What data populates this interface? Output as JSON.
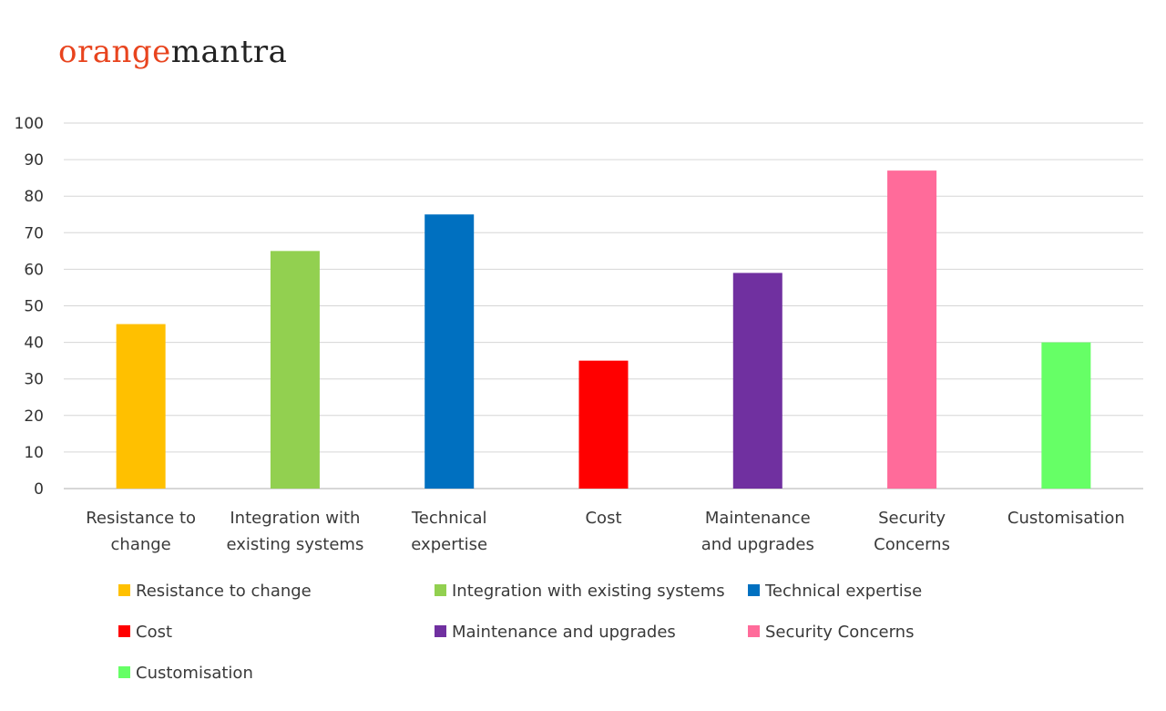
{
  "brand": {
    "part1": "orange",
    "part2": "mantra",
    "color1": "#e8441e",
    "color2": "#222222"
  },
  "chart_data": {
    "type": "bar",
    "title": "",
    "xlabel": "",
    "ylabel": "",
    "ylim": [
      0,
      100
    ],
    "yticks": [
      0,
      10,
      20,
      30,
      40,
      50,
      60,
      70,
      80,
      90,
      100
    ],
    "grid": true,
    "legend_position": "bottom",
    "categories": [
      "Resistance to change",
      "Integration with existing systems",
      "Technical expertise",
      "Cost",
      "Maintenance and upgrades",
      "Security Concerns",
      "Customisation"
    ],
    "category_label_lines": [
      [
        "Resistance to",
        "change"
      ],
      [
        "Integration with",
        "existing systems"
      ],
      [
        "Technical",
        "expertise"
      ],
      [
        "Cost"
      ],
      [
        "Maintenance",
        "and upgrades"
      ],
      [
        "Security",
        "Concerns"
      ],
      [
        "Customisation"
      ]
    ],
    "values": [
      45,
      65,
      75,
      35,
      59,
      87,
      40
    ],
    "colors": [
      "#ffc000",
      "#92d050",
      "#0070c0",
      "#ff0000",
      "#7030a0",
      "#ff6b9a",
      "#66ff66"
    ]
  }
}
